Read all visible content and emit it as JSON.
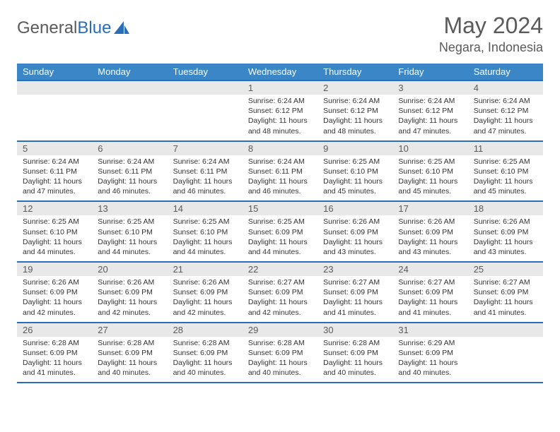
{
  "logo": {
    "text1": "General",
    "text2": "Blue"
  },
  "title": "May 2024",
  "location": "Negara, Indonesia",
  "colors": {
    "header_bg": "#3b86c7",
    "border": "#2a6db8",
    "daynum_bg": "#e8e8e8",
    "text_muted": "#5a5a5a",
    "text": "#333333",
    "white": "#ffffff"
  },
  "day_labels": [
    "Sunday",
    "Monday",
    "Tuesday",
    "Wednesday",
    "Thursday",
    "Friday",
    "Saturday"
  ],
  "weeks": [
    [
      {
        "num": "",
        "sunrise": "",
        "sunset": "",
        "daylight": ""
      },
      {
        "num": "",
        "sunrise": "",
        "sunset": "",
        "daylight": ""
      },
      {
        "num": "",
        "sunrise": "",
        "sunset": "",
        "daylight": ""
      },
      {
        "num": "1",
        "sunrise": "Sunrise: 6:24 AM",
        "sunset": "Sunset: 6:12 PM",
        "daylight": "Daylight: 11 hours and 48 minutes."
      },
      {
        "num": "2",
        "sunrise": "Sunrise: 6:24 AM",
        "sunset": "Sunset: 6:12 PM",
        "daylight": "Daylight: 11 hours and 48 minutes."
      },
      {
        "num": "3",
        "sunrise": "Sunrise: 6:24 AM",
        "sunset": "Sunset: 6:12 PM",
        "daylight": "Daylight: 11 hours and 47 minutes."
      },
      {
        "num": "4",
        "sunrise": "Sunrise: 6:24 AM",
        "sunset": "Sunset: 6:12 PM",
        "daylight": "Daylight: 11 hours and 47 minutes."
      }
    ],
    [
      {
        "num": "5",
        "sunrise": "Sunrise: 6:24 AM",
        "sunset": "Sunset: 6:11 PM",
        "daylight": "Daylight: 11 hours and 47 minutes."
      },
      {
        "num": "6",
        "sunrise": "Sunrise: 6:24 AM",
        "sunset": "Sunset: 6:11 PM",
        "daylight": "Daylight: 11 hours and 46 minutes."
      },
      {
        "num": "7",
        "sunrise": "Sunrise: 6:24 AM",
        "sunset": "Sunset: 6:11 PM",
        "daylight": "Daylight: 11 hours and 46 minutes."
      },
      {
        "num": "8",
        "sunrise": "Sunrise: 6:24 AM",
        "sunset": "Sunset: 6:11 PM",
        "daylight": "Daylight: 11 hours and 46 minutes."
      },
      {
        "num": "9",
        "sunrise": "Sunrise: 6:25 AM",
        "sunset": "Sunset: 6:10 PM",
        "daylight": "Daylight: 11 hours and 45 minutes."
      },
      {
        "num": "10",
        "sunrise": "Sunrise: 6:25 AM",
        "sunset": "Sunset: 6:10 PM",
        "daylight": "Daylight: 11 hours and 45 minutes."
      },
      {
        "num": "11",
        "sunrise": "Sunrise: 6:25 AM",
        "sunset": "Sunset: 6:10 PM",
        "daylight": "Daylight: 11 hours and 45 minutes."
      }
    ],
    [
      {
        "num": "12",
        "sunrise": "Sunrise: 6:25 AM",
        "sunset": "Sunset: 6:10 PM",
        "daylight": "Daylight: 11 hours and 44 minutes."
      },
      {
        "num": "13",
        "sunrise": "Sunrise: 6:25 AM",
        "sunset": "Sunset: 6:10 PM",
        "daylight": "Daylight: 11 hours and 44 minutes."
      },
      {
        "num": "14",
        "sunrise": "Sunrise: 6:25 AM",
        "sunset": "Sunset: 6:10 PM",
        "daylight": "Daylight: 11 hours and 44 minutes."
      },
      {
        "num": "15",
        "sunrise": "Sunrise: 6:25 AM",
        "sunset": "Sunset: 6:09 PM",
        "daylight": "Daylight: 11 hours and 44 minutes."
      },
      {
        "num": "16",
        "sunrise": "Sunrise: 6:26 AM",
        "sunset": "Sunset: 6:09 PM",
        "daylight": "Daylight: 11 hours and 43 minutes."
      },
      {
        "num": "17",
        "sunrise": "Sunrise: 6:26 AM",
        "sunset": "Sunset: 6:09 PM",
        "daylight": "Daylight: 11 hours and 43 minutes."
      },
      {
        "num": "18",
        "sunrise": "Sunrise: 6:26 AM",
        "sunset": "Sunset: 6:09 PM",
        "daylight": "Daylight: 11 hours and 43 minutes."
      }
    ],
    [
      {
        "num": "19",
        "sunrise": "Sunrise: 6:26 AM",
        "sunset": "Sunset: 6:09 PM",
        "daylight": "Daylight: 11 hours and 42 minutes."
      },
      {
        "num": "20",
        "sunrise": "Sunrise: 6:26 AM",
        "sunset": "Sunset: 6:09 PM",
        "daylight": "Daylight: 11 hours and 42 minutes."
      },
      {
        "num": "21",
        "sunrise": "Sunrise: 6:26 AM",
        "sunset": "Sunset: 6:09 PM",
        "daylight": "Daylight: 11 hours and 42 minutes."
      },
      {
        "num": "22",
        "sunrise": "Sunrise: 6:27 AM",
        "sunset": "Sunset: 6:09 PM",
        "daylight": "Daylight: 11 hours and 42 minutes."
      },
      {
        "num": "23",
        "sunrise": "Sunrise: 6:27 AM",
        "sunset": "Sunset: 6:09 PM",
        "daylight": "Daylight: 11 hours and 41 minutes."
      },
      {
        "num": "24",
        "sunrise": "Sunrise: 6:27 AM",
        "sunset": "Sunset: 6:09 PM",
        "daylight": "Daylight: 11 hours and 41 minutes."
      },
      {
        "num": "25",
        "sunrise": "Sunrise: 6:27 AM",
        "sunset": "Sunset: 6:09 PM",
        "daylight": "Daylight: 11 hours and 41 minutes."
      }
    ],
    [
      {
        "num": "26",
        "sunrise": "Sunrise: 6:28 AM",
        "sunset": "Sunset: 6:09 PM",
        "daylight": "Daylight: 11 hours and 41 minutes."
      },
      {
        "num": "27",
        "sunrise": "Sunrise: 6:28 AM",
        "sunset": "Sunset: 6:09 PM",
        "daylight": "Daylight: 11 hours and 40 minutes."
      },
      {
        "num": "28",
        "sunrise": "Sunrise: 6:28 AM",
        "sunset": "Sunset: 6:09 PM",
        "daylight": "Daylight: 11 hours and 40 minutes."
      },
      {
        "num": "29",
        "sunrise": "Sunrise: 6:28 AM",
        "sunset": "Sunset: 6:09 PM",
        "daylight": "Daylight: 11 hours and 40 minutes."
      },
      {
        "num": "30",
        "sunrise": "Sunrise: 6:28 AM",
        "sunset": "Sunset: 6:09 PM",
        "daylight": "Daylight: 11 hours and 40 minutes."
      },
      {
        "num": "31",
        "sunrise": "Sunrise: 6:29 AM",
        "sunset": "Sunset: 6:09 PM",
        "daylight": "Daylight: 11 hours and 40 minutes."
      },
      {
        "num": "",
        "sunrise": "",
        "sunset": "",
        "daylight": ""
      }
    ]
  ]
}
